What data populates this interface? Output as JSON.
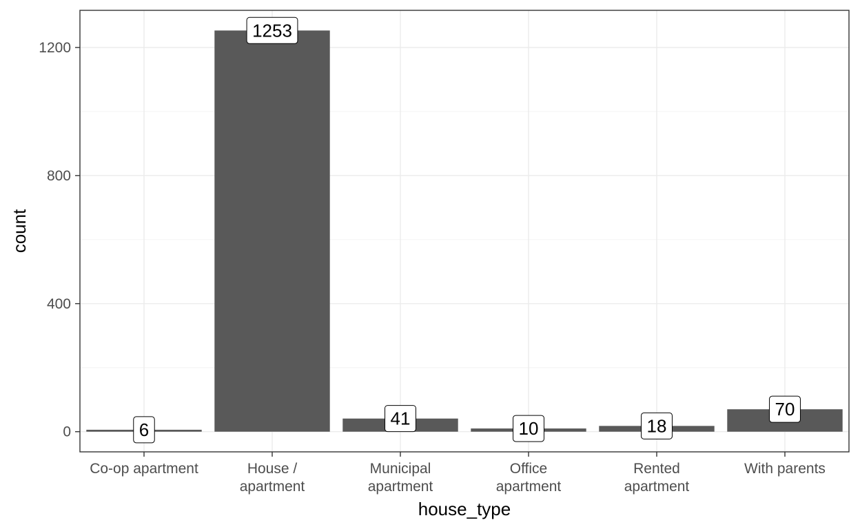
{
  "chart_data": {
    "type": "bar",
    "title": "",
    "xlabel": "house_type",
    "ylabel": "count",
    "categories": [
      [
        "Co-op apartment"
      ],
      [
        "House /",
        "apartment"
      ],
      [
        "Municipal",
        "apartment"
      ],
      [
        "Office",
        "apartment"
      ],
      [
        "Rented",
        "apartment"
      ],
      [
        "With parents"
      ]
    ],
    "values": [
      6,
      1253,
      41,
      10,
      18,
      70
    ],
    "data_labels": [
      "6",
      "1253",
      "41",
      "10",
      "18",
      "70"
    ],
    "ylim": [
      -63,
      1316
    ],
    "yticks": [
      0,
      400,
      800,
      1200
    ],
    "ytick_labels": [
      "0",
      "400",
      "800",
      "1200"
    ],
    "grid": true,
    "legend": "none",
    "colors": {
      "bar": "#595959",
      "major_grid": "#ebebeb",
      "minor_grid": "#f5f5f5",
      "panel_border": "#333333",
      "label_fill": "#ffffff"
    }
  }
}
